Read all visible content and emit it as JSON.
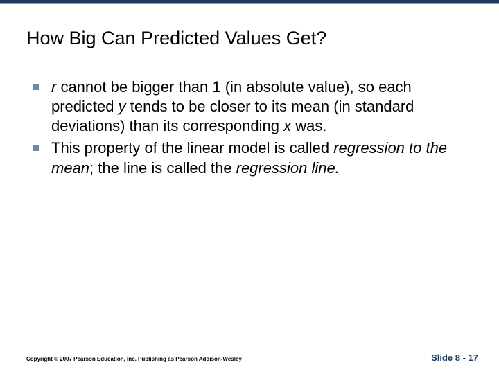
{
  "colors": {
    "accent_dark": "#1f3a5f",
    "accent_orange": "#d98c2b",
    "bullet_fill": "#6d8aa8",
    "slidenum_color": "#1f3a5f"
  },
  "title": "How Big Can Predicted Values Get?",
  "bullets": [
    {
      "parts": [
        {
          "text": "r",
          "italic": true
        },
        {
          "text": " cannot be bigger than 1 (in absolute value), so each predicted "
        },
        {
          "text": "y",
          "italic": true
        },
        {
          "text": " tends to be closer to its mean (in standard deviations) than its corresponding "
        },
        {
          "text": "x",
          "italic": true
        },
        {
          "text": " was."
        }
      ]
    },
    {
      "parts": [
        {
          "text": "This property of the linear model is called "
        },
        {
          "text": "regression to the mean",
          "italic": true
        },
        {
          "text": "; the line is called the "
        },
        {
          "text": "regression line.",
          "italic": true
        }
      ]
    }
  ],
  "footer": {
    "copyright": "Copyright © 2007 Pearson Education, Inc. Publishing as Pearson Addison-Wesley",
    "slidenum": "Slide 8 - 17"
  }
}
